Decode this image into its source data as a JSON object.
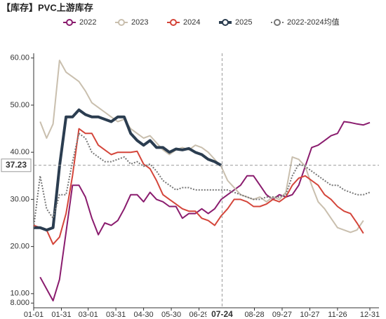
{
  "chart_data": {
    "type": "line",
    "title": "【库存】PVC上游库存",
    "x": [
      "01-01",
      "01-08",
      "01-15",
      "01-22",
      "01-29",
      "02-05",
      "02-12",
      "02-19",
      "02-26",
      "03-05",
      "03-12",
      "03-19",
      "03-26",
      "04-02",
      "04-09",
      "04-16",
      "04-23",
      "04-30",
      "05-07",
      "05-14",
      "05-21",
      "05-28",
      "06-04",
      "06-11",
      "06-18",
      "06-25",
      "07-02",
      "07-09",
      "07-16",
      "07-23",
      "07-30",
      "08-06",
      "08-13",
      "08-20",
      "08-27",
      "09-03",
      "09-10",
      "09-17",
      "09-24",
      "10-01",
      "10-08",
      "10-15",
      "10-22",
      "10-29",
      "11-05",
      "11-12",
      "11-19",
      "11-26",
      "12-03",
      "12-10",
      "12-17",
      "12-24",
      "12-31"
    ],
    "series": [
      {
        "name": "2022",
        "color": "#8a1c6e",
        "values": [
          null,
          13.5,
          11,
          8.5,
          13,
          23,
          33,
          33,
          30.5,
          26,
          22.5,
          25,
          24.5,
          25.5,
          28,
          31,
          31,
          29.5,
          31.5,
          30,
          29.5,
          28.5,
          28.5,
          26,
          27,
          27,
          28,
          27,
          28,
          30,
          31,
          32,
          33,
          35,
          35,
          33,
          31,
          30,
          31,
          30.5,
          31,
          33,
          37,
          41,
          41.5,
          42.5,
          43.5,
          44,
          46.5,
          46.3,
          46,
          45.8,
          46.3
        ]
      },
      {
        "name": "2023",
        "color": "#c9bfae",
        "values": [
          null,
          46.5,
          43,
          46,
          59.5,
          57,
          56,
          55,
          53,
          50.5,
          49.5,
          48.5,
          47.5,
          46.5,
          47,
          45,
          44,
          43,
          43.5,
          42,
          40.5,
          39.5,
          40.5,
          41,
          40.5,
          41.5,
          41,
          40,
          38.5,
          37,
          34,
          32.5,
          31,
          30.5,
          30,
          30.5,
          29.5,
          30.5,
          30,
          31.5,
          39,
          38.5,
          37,
          33,
          29.5,
          28,
          26,
          24,
          23.5,
          23,
          23.5,
          25.5,
          null
        ]
      },
      {
        "name": "2024",
        "color": "#d4453a",
        "values": [
          24.5,
          24,
          23.5,
          20.5,
          22,
          27,
          35,
          45,
          44,
          44,
          41.5,
          40.5,
          39.5,
          40,
          40,
          40,
          40.2,
          37.5,
          36.5,
          34,
          31,
          30,
          29,
          28,
          27.5,
          27.5,
          26,
          25.5,
          24.5,
          26.5,
          28,
          30,
          30,
          29.5,
          28.5,
          28.5,
          29,
          30,
          29.5,
          30.5,
          33,
          34.5,
          35,
          34,
          33,
          31,
          30,
          28.5,
          27.5,
          27,
          25,
          22.8,
          null
        ]
      },
      {
        "name": "2025",
        "color": "#2b3d50",
        "values": [
          24,
          24,
          23.5,
          24,
          37,
          47.5,
          47.5,
          49,
          48,
          47.5,
          47.5,
          47,
          46.5,
          47.5,
          47.5,
          44,
          42.5,
          41.5,
          42.5,
          41,
          41,
          40,
          40.7,
          40.5,
          40.8,
          40,
          39.5,
          38.5,
          38,
          37.23,
          null,
          null,
          null,
          null,
          null,
          null,
          null,
          null,
          null,
          null,
          null,
          null,
          null,
          null,
          null,
          null,
          null,
          null,
          null,
          null,
          null,
          null,
          null
        ]
      },
      {
        "name": "2022-2024均值",
        "color": "#777777",
        "values": [
          24,
          35,
          28,
          26,
          31,
          31,
          38,
          44,
          43,
          40,
          39,
          38,
          38,
          38.5,
          39,
          37.5,
          38,
          37,
          37.5,
          36,
          34,
          33,
          32,
          32.5,
          32.5,
          32,
          32,
          32,
          32,
          32,
          32,
          31.5,
          31,
          30.5,
          30,
          30,
          30.5,
          30.5,
          30.5,
          31,
          35,
          37.5,
          37,
          36,
          35,
          34,
          33,
          33,
          32,
          31.5,
          31,
          31,
          31.5
        ]
      }
    ],
    "xlim": [
      "01-01",
      "12-31"
    ],
    "xticks": [
      "01-01",
      "01-31",
      "03-01",
      "03-31",
      "04-30",
      "05-30",
      "06-29",
      "08-28",
      "09-27",
      "10-27",
      "11-26",
      "12-31"
    ],
    "ylim": [
      7,
      61
    ],
    "yticks": [
      {
        "value": 8,
        "label": "8.000"
      },
      {
        "value": 10,
        "label": "10.00"
      },
      {
        "value": 20,
        "label": "20.00"
      },
      {
        "value": 30,
        "label": "30.00"
      },
      {
        "value": 40,
        "label": "40.00"
      },
      {
        "value": 50,
        "label": "50.00"
      },
      {
        "value": 60,
        "label": "60.00"
      }
    ],
    "crosshair": {
      "x": "07-24",
      "y": 37.23
    }
  }
}
